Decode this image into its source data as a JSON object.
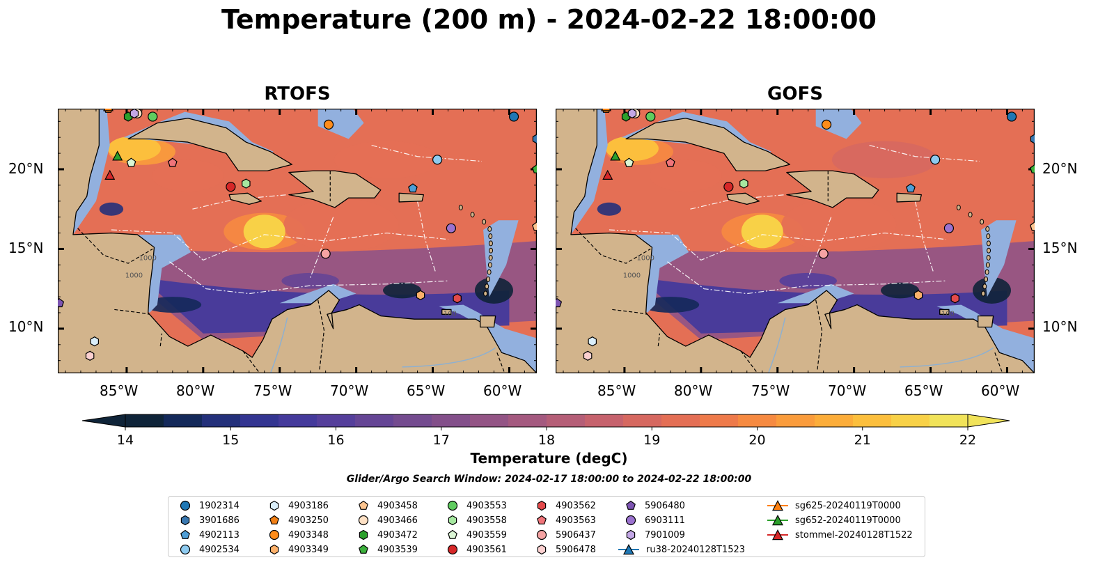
{
  "title": "Temperature (200 m) - 2024-02-22 18:00:00",
  "panels": [
    {
      "title": "RTOFS"
    },
    {
      "title": "GOFS"
    }
  ],
  "axis": {
    "lon_ticks": [
      "85°W",
      "80°W",
      "75°W",
      "70°W",
      "65°W",
      "60°W"
    ],
    "lat_ticks": [
      "20°N",
      "15°N",
      "10°N"
    ],
    "lon_range": [
      -89.5,
      -58.2
    ],
    "lat_range": [
      7.2,
      23.8
    ]
  },
  "colorbar": {
    "label": "Temperature (degC)",
    "ticks": [
      "14",
      "15",
      "16",
      "17",
      "18",
      "19",
      "20",
      "21",
      "22"
    ],
    "range": [
      14,
      22
    ],
    "extend": "both",
    "colormap": "thermal",
    "colors": [
      "#0f2439",
      "#14295a",
      "#23307a",
      "#333591",
      "#443a9b",
      "#553f9b",
      "#654595",
      "#744b8f",
      "#834f8a",
      "#935485",
      "#a4597f",
      "#b55e77",
      "#c6626d",
      "#d66860",
      "#e46f55",
      "#ee7a4a",
      "#f68a41",
      "#fa9c3c",
      "#fcad3a",
      "#fcbf3d",
      "#f8d147",
      "#f1e35a"
    ]
  },
  "map_colors": {
    "land": "#d2b48c",
    "shelf": "#92b0de",
    "coast": "#000000",
    "boundaries": "#ffffff"
  },
  "contour_labels": [
    "1000",
    "1000",
    "100"
  ],
  "search_window": "Glider/Argo Search Window: 2024-02-17 18:00:00 to 2024-02-22 18:00:00",
  "legend": [
    {
      "label": "1902314",
      "marker": "circle",
      "color": "#1f77b4"
    },
    {
      "label": "3901686",
      "marker": "hexagon",
      "color": "#3a78b0"
    },
    {
      "label": "4902113",
      "marker": "pentagon",
      "color": "#4f9ed6"
    },
    {
      "label": "4902534",
      "marker": "circle",
      "color": "#8ecbf0"
    },
    {
      "label": "4903186",
      "marker": "hexagon",
      "color": "#daeefa"
    },
    {
      "label": "4903250",
      "marker": "pentagon",
      "color": "#f07f15"
    },
    {
      "label": "4903348",
      "marker": "circle",
      "color": "#ff8c1a"
    },
    {
      "label": "4903349",
      "marker": "hexagon",
      "color": "#fcb06a"
    },
    {
      "label": "4903458",
      "marker": "pentagon",
      "color": "#fcc48f"
    },
    {
      "label": "4903466",
      "marker": "circle",
      "color": "#fde0c4"
    },
    {
      "label": "4903472",
      "marker": "hexagon",
      "color": "#2ca02c"
    },
    {
      "label": "4903539",
      "marker": "pentagon",
      "color": "#3cb03c"
    },
    {
      "label": "4903553",
      "marker": "circle",
      "color": "#5fcc5f"
    },
    {
      "label": "4903558",
      "marker": "hexagon",
      "color": "#a6e8a0"
    },
    {
      "label": "4903559",
      "marker": "pentagon",
      "color": "#dbf6d5"
    },
    {
      "label": "4903561",
      "marker": "circle",
      "color": "#d62728"
    },
    {
      "label": "4903562",
      "marker": "hexagon",
      "color": "#e34a4b"
    },
    {
      "label": "4903563",
      "marker": "pentagon",
      "color": "#f0747a"
    },
    {
      "label": "5906437",
      "marker": "circle",
      "color": "#f5a3a3"
    },
    {
      "label": "5906478",
      "marker": "hexagon",
      "color": "#fbd0d0"
    },
    {
      "label": "5906480",
      "marker": "pentagon",
      "color": "#7d54b2"
    },
    {
      "label": "6903111",
      "marker": "circle",
      "color": "#9b72cf"
    },
    {
      "label": "7901009",
      "marker": "hexagon",
      "color": "#c3a7e6"
    },
    {
      "label": "ru38-20240128T1523",
      "marker": "triangle-line",
      "color": "#1f77b4"
    },
    {
      "label": "sg625-20240119T0000",
      "marker": "triangle-line",
      "color": "#ff7f0e"
    },
    {
      "label": "sg652-20240119T0000",
      "marker": "triangle-line",
      "color": "#2ca02c"
    },
    {
      "label": "stommel-20240128T1522",
      "marker": "triangle-line",
      "color": "#d62728"
    }
  ],
  "observations": [
    {
      "id": "1902314",
      "lon": -59.7,
      "lat": 23.3
    },
    {
      "id": "3901686",
      "lon": -58.2,
      "lat": 21.9
    },
    {
      "id": "4902113",
      "lon": -66.3,
      "lat": 18.8
    },
    {
      "id": "4902534",
      "lon": -64.7,
      "lat": 20.6
    },
    {
      "id": "4903186",
      "lon": -87.1,
      "lat": 9.2
    },
    {
      "id": "4903250",
      "lon": -86.2,
      "lat": 23.8
    },
    {
      "id": "4903348",
      "lon": -71.8,
      "lat": 22.8
    },
    {
      "id": "4903349",
      "lon": -65.8,
      "lat": 12.1
    },
    {
      "id": "4903458",
      "lon": -58.2,
      "lat": 16.4
    },
    {
      "id": "4903466",
      "lon": -84.3,
      "lat": 23.5
    },
    {
      "id": "4903472",
      "lon": -84.9,
      "lat": 23.3
    },
    {
      "id": "4903539",
      "lon": -58.2,
      "lat": 20.0
    },
    {
      "id": "4903553",
      "lon": -83.3,
      "lat": 23.3
    },
    {
      "id": "4903558",
      "lon": -77.2,
      "lat": 19.1
    },
    {
      "id": "4903559",
      "lon": -84.7,
      "lat": 20.4
    },
    {
      "id": "4903561",
      "lon": -78.2,
      "lat": 18.9
    },
    {
      "id": "4903562",
      "lon": -63.4,
      "lat": 11.9
    },
    {
      "id": "4903563",
      "lon": -82.0,
      "lat": 20.4
    },
    {
      "id": "5906437",
      "lon": -72.0,
      "lat": 14.7
    },
    {
      "id": "5906478",
      "lon": -87.4,
      "lat": 8.3
    },
    {
      "id": "5906480",
      "lon": -89.4,
      "lat": 11.6
    },
    {
      "id": "6903111",
      "lon": -63.8,
      "lat": 16.3
    },
    {
      "id": "7901009",
      "lon": -84.5,
      "lat": 23.5
    },
    {
      "id": "sg625-20240119T0000",
      "lon": -86.2,
      "lat": 23.9
    },
    {
      "id": "sg652-20240119T0000",
      "lon": -85.6,
      "lat": 20.8
    },
    {
      "id": "stommel-20240128T1522",
      "lon": -86.1,
      "lat": 19.6
    }
  ]
}
